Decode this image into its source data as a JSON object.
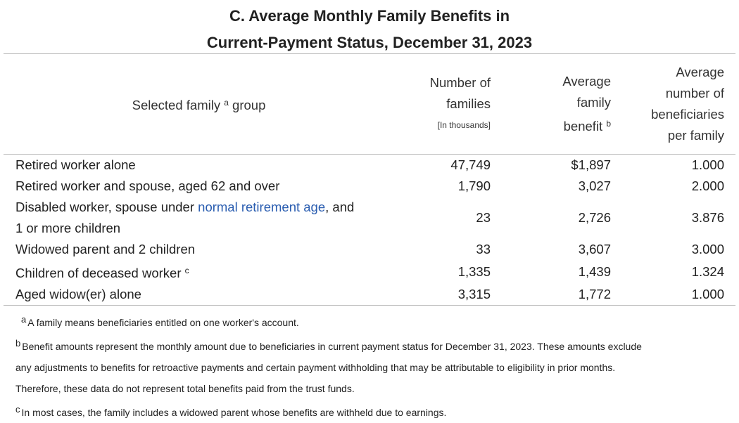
{
  "title": {
    "line1": "C. Average Monthly Family Benefits in",
    "line2": "Current-Payment Status, December 31, 2023"
  },
  "headers": {
    "group": "Selected family",
    "group_sup": "a",
    "group_tail": "group",
    "families_1": "Number of",
    "families_2": "families",
    "families_unit": "[In thousands]",
    "benefit_1": "Average",
    "benefit_2": "family",
    "benefit_3": "benefit",
    "benefit_sup": "b",
    "bene_1": "Average",
    "bene_2": "number of",
    "bene_3": "beneficiaries",
    "bene_4": "per family"
  },
  "rows": [
    {
      "label": "Retired worker alone",
      "families": "47,749",
      "benefit": "$1,897",
      "beneficiaries": "1.000"
    },
    {
      "label": "Retired worker and spouse, aged 62 and over",
      "families": "1,790",
      "benefit": "3,027",
      "beneficiaries": "2.000"
    },
    {
      "label_pre": "Disabled worker, spouse under ",
      "label_link": "normal retirement age",
      "label_post": ", and",
      "label_line2": "1 or more children",
      "families": "23",
      "benefit": "2,726",
      "beneficiaries": "3.876"
    },
    {
      "label": "Widowed parent and 2 children",
      "families": "33",
      "benefit": "3,607",
      "beneficiaries": "3.000"
    },
    {
      "label": "Children of deceased worker",
      "label_sup": "c",
      "families": "1,335",
      "benefit": "1,439",
      "beneficiaries": "1.324"
    },
    {
      "label": "Aged widow(er) alone",
      "families": "3,315",
      "benefit": "1,772",
      "beneficiaries": "1.000"
    }
  ],
  "footnotes": {
    "a_mark": "a",
    "a": "A family means beneficiaries entitled on one worker's account.",
    "b_mark": "b",
    "b1": "Benefit amounts represent the monthly amount due to beneficiaries in current payment status for December 31, 2023. These amounts exclude",
    "b2": "any adjustments to benefits for retroactive payments and certain payment withholding that may be attributable to eligibility in prior months.",
    "b3": "Therefore, these data do not represent total benefits paid from the trust funds.",
    "c_mark": "c",
    "c": "In most cases, the family includes a widowed parent whose benefits are withheld due to earnings."
  },
  "colors": {
    "link": "#2a5db0",
    "rule": "#bbbbbb"
  }
}
